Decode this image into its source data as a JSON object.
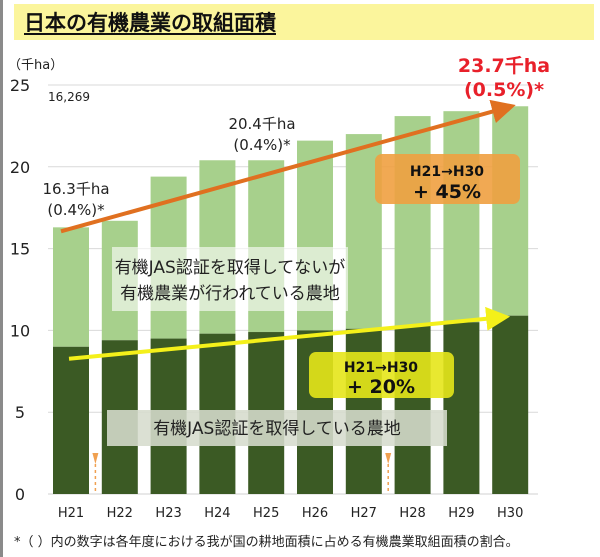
{
  "title": "日本の有機農業の取組面積",
  "footnote": "*（ ）内の数字は各年度における我が国の耕地面積に占める有機農業取組面積の割合。",
  "colors": {
    "certified": "#3b5a24",
    "uncertified": "#a7d08c",
    "orange_arrow": "#e07020",
    "yellow_arrow": "#f4f01a",
    "orange_box": "#f0a040",
    "yellow_box": "#e6e61a",
    "highlight_red": "#e8202a"
  },
  "chart_data": {
    "type": "bar",
    "stacked": true,
    "title": "日本の有機農業の取組面積",
    "ylabel": "（千ha）",
    "xlabel": "",
    "ylim": [
      0,
      25
    ],
    "yticks": [
      0,
      5,
      10,
      15,
      20,
      25
    ],
    "grid": true,
    "categories": [
      "H21",
      "H22",
      "H23",
      "H24",
      "H25",
      "H26",
      "H27",
      "H28",
      "H29",
      "H30"
    ],
    "series": [
      {
        "name": "有機JAS認証を取得している農地",
        "values": [
          9.0,
          9.4,
          9.5,
          9.8,
          9.9,
          10.0,
          10.1,
          10.3,
          10.5,
          10.9
        ]
      },
      {
        "name": "有機JAS認証を取得してないが有機農業が行われている農地",
        "values": [
          7.3,
          7.3,
          9.9,
          10.6,
          10.5,
          11.6,
          11.9,
          12.8,
          12.9,
          12.8
        ]
      }
    ],
    "totals": [
      16.3,
      16.7,
      19.4,
      20.4,
      20.4,
      21.6,
      22.0,
      23.1,
      23.4,
      23.7
    ],
    "top_left_value": "16,269",
    "annotations": {
      "h21_value": "16.3千ha",
      "h21_share": "(0.4%)*",
      "h25_value": "20.4千ha",
      "h25_share": "(0.4%)*",
      "h30_value": "23.7千ha",
      "h30_share": "(0.5%)*",
      "total_growth_period": "H21→H30",
      "total_growth": "+ 45%",
      "certified_growth_period": "H21→H30",
      "certified_growth": "+ 20%",
      "uncertified_label_line1": "有機JAS認証を取得してないが",
      "uncertified_label_line2": "有機農業が行われている農地",
      "certified_label": "有機JAS認証を取得している農地"
    },
    "markers_between": [
      "H21-H22",
      "H27-H28"
    ]
  }
}
